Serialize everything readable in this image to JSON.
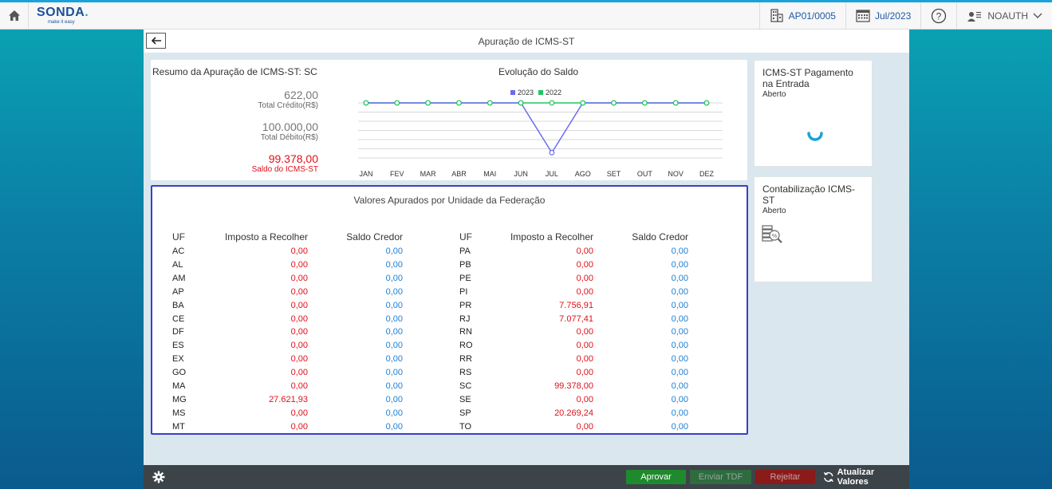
{
  "topbar": {
    "logo": "SONDA",
    "logo_dot": ".",
    "logo_tagline": "make it easy",
    "company": "AP01/0005",
    "period": "Jul/2023",
    "user": "NOAUTH"
  },
  "page": {
    "title": "Apuração de ICMS-ST"
  },
  "summary": {
    "title": "Resumo da Apuração de ICMS-ST: SC",
    "credito_value": "622,00",
    "credito_label": "Total Crédito(R$)",
    "debito_value": "100.000,00",
    "debito_label": "Total Débito(R$)",
    "saldo_value": "99.378,00",
    "saldo_label": "Saldo do ICMS-ST"
  },
  "chart_data": {
    "type": "line",
    "title": "Evolução do Saldo",
    "categories": [
      "JAN",
      "FEV",
      "MAR",
      "ABR",
      "MAI",
      "JUN",
      "JUL",
      "AGO",
      "SET",
      "OUT",
      "NOV",
      "DEZ"
    ],
    "series": [
      {
        "name": "2023",
        "color": "#6b6bf2",
        "values": [
          0,
          0,
          0,
          0,
          0,
          0,
          -99378,
          0,
          0,
          0,
          0,
          0
        ]
      },
      {
        "name": "2022",
        "color": "#22c55e",
        "values": [
          0,
          0,
          0,
          0,
          0,
          0,
          0,
          0,
          0,
          0,
          0,
          0
        ]
      }
    ],
    "legend_position": "top-center",
    "grid": true
  },
  "federacao": {
    "title": "Valores Apurados por Unidade da Federação",
    "headers": {
      "uf": "UF",
      "imposto": "Imposto a Recolher",
      "saldo": "Saldo Credor"
    },
    "left": [
      {
        "uf": "AC",
        "imposto": "0,00",
        "saldo": "0,00"
      },
      {
        "uf": "AL",
        "imposto": "0,00",
        "saldo": "0,00"
      },
      {
        "uf": "AM",
        "imposto": "0,00",
        "saldo": "0,00"
      },
      {
        "uf": "AP",
        "imposto": "0,00",
        "saldo": "0,00"
      },
      {
        "uf": "BA",
        "imposto": "0,00",
        "saldo": "0,00"
      },
      {
        "uf": "CE",
        "imposto": "0,00",
        "saldo": "0,00"
      },
      {
        "uf": "DF",
        "imposto": "0,00",
        "saldo": "0,00"
      },
      {
        "uf": "ES",
        "imposto": "0,00",
        "saldo": "0,00"
      },
      {
        "uf": "EX",
        "imposto": "0,00",
        "saldo": "0,00"
      },
      {
        "uf": "GO",
        "imposto": "0,00",
        "saldo": "0,00"
      },
      {
        "uf": "MA",
        "imposto": "0,00",
        "saldo": "0,00"
      },
      {
        "uf": "MG",
        "imposto": "27.621,93",
        "saldo": "0,00"
      },
      {
        "uf": "MS",
        "imposto": "0,00",
        "saldo": "0,00"
      },
      {
        "uf": "MT",
        "imposto": "0,00",
        "saldo": "0,00"
      }
    ],
    "right": [
      {
        "uf": "PA",
        "imposto": "0,00",
        "saldo": "0,00"
      },
      {
        "uf": "PB",
        "imposto": "0,00",
        "saldo": "0,00"
      },
      {
        "uf": "PE",
        "imposto": "0,00",
        "saldo": "0,00"
      },
      {
        "uf": "PI",
        "imposto": "0,00",
        "saldo": "0,00"
      },
      {
        "uf": "PR",
        "imposto": "7.756,91",
        "saldo": "0,00"
      },
      {
        "uf": "RJ",
        "imposto": "7.077,41",
        "saldo": "0,00"
      },
      {
        "uf": "RN",
        "imposto": "0,00",
        "saldo": "0,00"
      },
      {
        "uf": "RO",
        "imposto": "0,00",
        "saldo": "0,00"
      },
      {
        "uf": "RR",
        "imposto": "0,00",
        "saldo": "0,00"
      },
      {
        "uf": "RS",
        "imposto": "0,00",
        "saldo": "0,00"
      },
      {
        "uf": "SC",
        "imposto": "99.378,00",
        "saldo": "0,00"
      },
      {
        "uf": "SE",
        "imposto": "0,00",
        "saldo": "0,00"
      },
      {
        "uf": "SP",
        "imposto": "20.269,24",
        "saldo": "0,00"
      },
      {
        "uf": "TO",
        "imposto": "0,00",
        "saldo": "0,00"
      }
    ]
  },
  "cards": {
    "pagamento": {
      "title": "ICMS-ST Pagamento na Entrada",
      "status": "Aberto",
      "icon": "loading-spinner-icon"
    },
    "contabilizacao": {
      "title": "Contabilização ICMS-ST",
      "status": "Aberto",
      "icon": "accounting-search-icon"
    }
  },
  "footer": {
    "aprovar": "Aprovar",
    "enviar_tdf": "Enviar TDF",
    "rejeitar": "Rejeitar",
    "atualizar": "Atualizar Valores"
  },
  "colors": {
    "accent": "#1aa3d8",
    "credit_red": "#e0101a",
    "saldo_blue": "#1c7fd8",
    "aprovar_green": "#1f8a2d",
    "rejeitar_red": "#8b1a1a",
    "highlight_border": "#3a3fc8"
  }
}
